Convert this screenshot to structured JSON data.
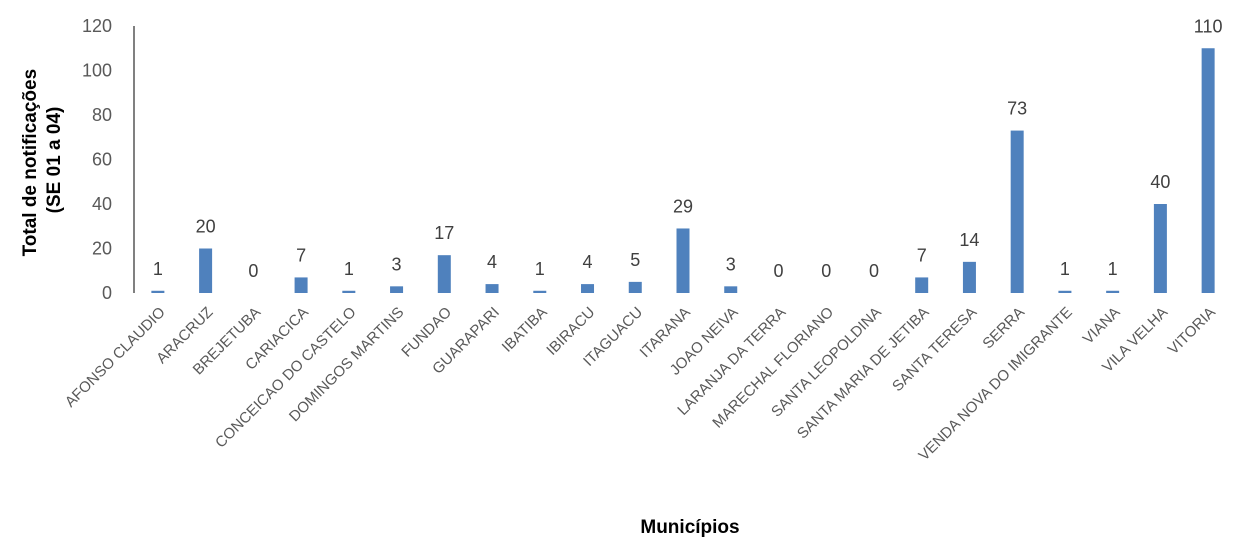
{
  "chart_data": {
    "type": "bar",
    "title": "",
    "xlabel": "Municípios",
    "ylabel_line1": "Total de notificações",
    "ylabel_line2": "(SE 01 a 04)",
    "ylim": [
      0,
      120
    ],
    "yticks": [
      "0",
      "20",
      "40",
      "60",
      "80",
      "100",
      "120"
    ],
    "grid": false,
    "legend": "none",
    "bar_color": "#4F81BD",
    "categories": [
      "AFONSO CLAUDIO",
      "ARACRUZ",
      "BREJETUBA",
      "CARIACICA",
      "CONCEICAO DO CASTELO",
      "DOMINGOS MARTINS",
      "FUNDAO",
      "GUARAPARI",
      "IBATIBA",
      "IBIRACU",
      "ITAGUACU",
      "ITARANA",
      "JOAO NEIVA",
      "LARANJA DA TERRA",
      "MARECHAL FLORIANO",
      "SANTA LEOPOLDINA",
      "SANTA MARIA DE JETIBA",
      "SANTA TERESA",
      "SERRA",
      "VENDA NOVA DO IMIGRANTE",
      "VIANA",
      "VILA VELHA",
      "VITORIA"
    ],
    "values": [
      1,
      20,
      0,
      7,
      1,
      3,
      17,
      4,
      1,
      4,
      5,
      29,
      3,
      0,
      0,
      0,
      7,
      14,
      73,
      1,
      1,
      40,
      110
    ]
  }
}
